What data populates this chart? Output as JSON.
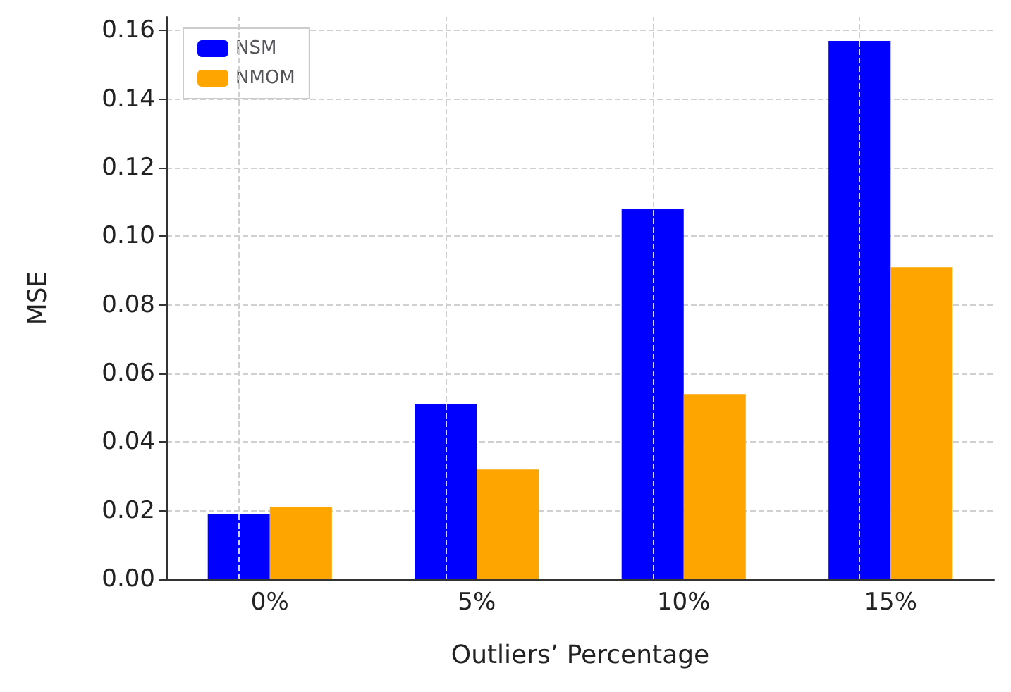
{
  "chart_data": {
    "type": "bar",
    "xlabel": "Outliers’ Percentage",
    "ylabel": "MSE",
    "categories": [
      "0%",
      "5%",
      "10%",
      "15%"
    ],
    "series": [
      {
        "name": "NSM",
        "color": "#0000ff",
        "values": [
          0.019,
          0.051,
          0.108,
          0.157
        ]
      },
      {
        "name": "NMOM",
        "color": "#ffa500",
        "values": [
          0.021,
          0.032,
          0.054,
          0.091
        ]
      }
    ],
    "ylim": [
      0,
      0.164
    ],
    "yticks": [
      {
        "value": 0,
        "label": "0.00"
      },
      {
        "value": 0.02,
        "label": "0.02"
      },
      {
        "value": 0.04,
        "label": "0.04"
      },
      {
        "value": 0.06,
        "label": "0.06"
      },
      {
        "value": 0.08,
        "label": "0.08"
      },
      {
        "value": 0.1,
        "label": "0.10"
      },
      {
        "value": 0.12,
        "label": "0.12"
      },
      {
        "value": 0.14,
        "label": "0.14"
      },
      {
        "value": 0.16,
        "label": "0.16"
      }
    ],
    "grid": true,
    "legend": "top left"
  }
}
